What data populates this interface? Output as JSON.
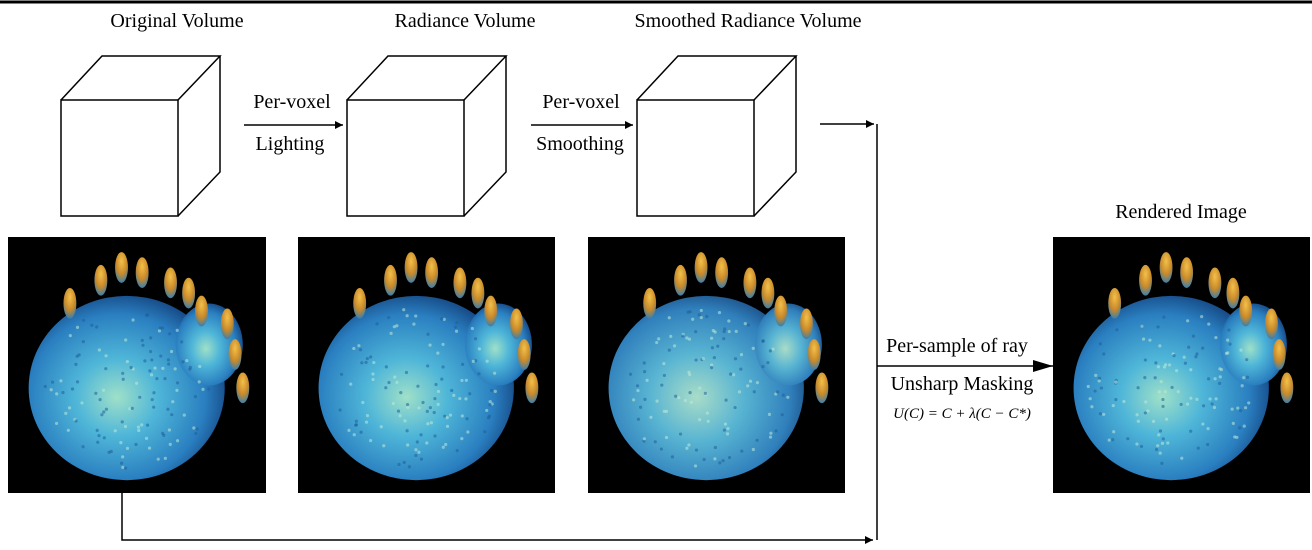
{
  "columns": [
    {
      "title": "Original  Volume"
    },
    {
      "title": "Radiance Volume"
    },
    {
      "title": "Smoothed Radiance Volume"
    }
  ],
  "steps": [
    {
      "line1": "Per-voxel",
      "line2": "Lighting"
    },
    {
      "line1": "Per-voxel",
      "line2": "Smoothing"
    }
  ],
  "final": {
    "title": "Rendered Image",
    "step_line1": "Per-sample of ray",
    "step_line2": "Unsharp Masking",
    "equation": "U(C) = C + λ(C − C*)"
  },
  "palette": {
    "background": "#ffffff",
    "line": "#000000",
    "image_bg": "#000000"
  }
}
